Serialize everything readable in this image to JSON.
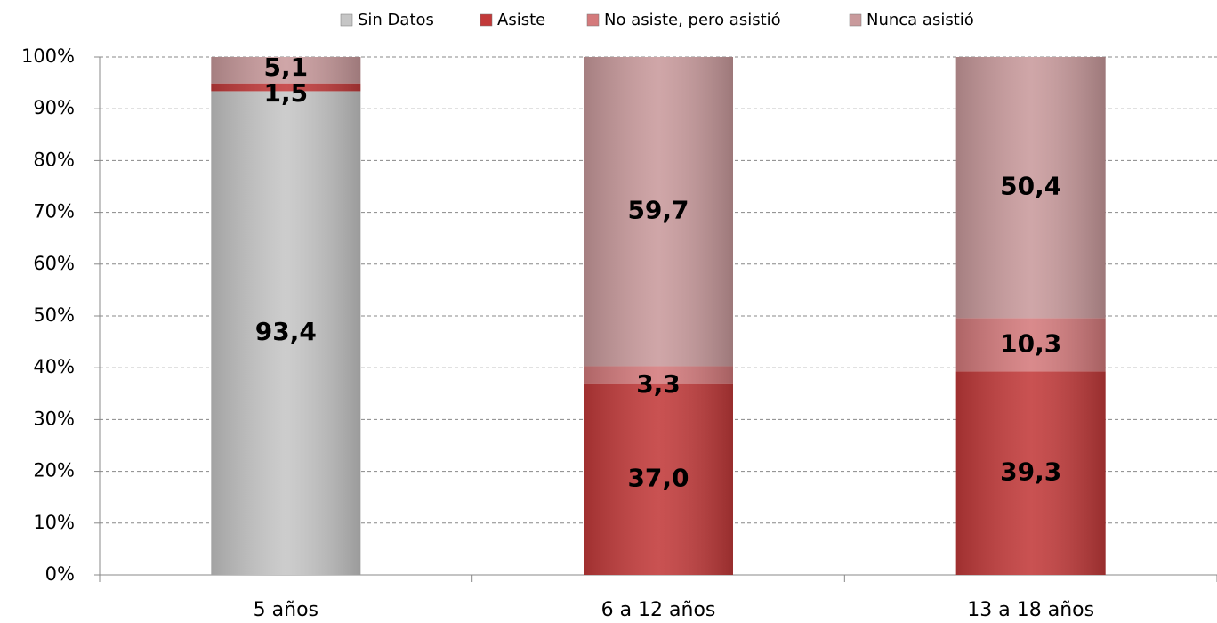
{
  "chart_data": {
    "type": "stacked_bar",
    "categories": [
      "5 años",
      "6 a 12 años",
      "13 a 18 años"
    ],
    "series": [
      {
        "name": "Sin Datos",
        "color": "#c6c6c6",
        "values": [
          93.4,
          null,
          null
        ],
        "value_labels": [
          "93,4",
          null,
          null
        ]
      },
      {
        "name": "Asiste",
        "color": "#c23a3a",
        "values": [
          1.5,
          37.0,
          39.3
        ],
        "value_labels": [
          "1,5",
          "37,0",
          "39,3"
        ]
      },
      {
        "name": "No asiste, pero asistió",
        "color": "#d47a7c",
        "values": [
          null,
          3.3,
          10.3
        ],
        "value_labels": [
          null,
          "3,3",
          "10,3"
        ]
      },
      {
        "name": "Nunca asistió",
        "color": "#c99a9c",
        "values": [
          5.1,
          59.7,
          50.4
        ],
        "value_labels": [
          "5,1",
          "59,7",
          "50,4"
        ]
      }
    ],
    "ylim": [
      0,
      100
    ],
    "yticks": [
      {
        "value": 0,
        "label": "0%"
      },
      {
        "value": 10,
        "label": "10%"
      },
      {
        "value": 20,
        "label": "20%"
      },
      {
        "value": 30,
        "label": "30%"
      },
      {
        "value": 40,
        "label": "40%"
      },
      {
        "value": 50,
        "label": "50%"
      },
      {
        "value": 60,
        "label": "60%"
      },
      {
        "value": 70,
        "label": "70%"
      },
      {
        "value": 80,
        "label": "80%"
      },
      {
        "value": 90,
        "label": "90%"
      },
      {
        "value": 100,
        "label": "100%"
      }
    ],
    "grid": true,
    "legend": "top"
  }
}
